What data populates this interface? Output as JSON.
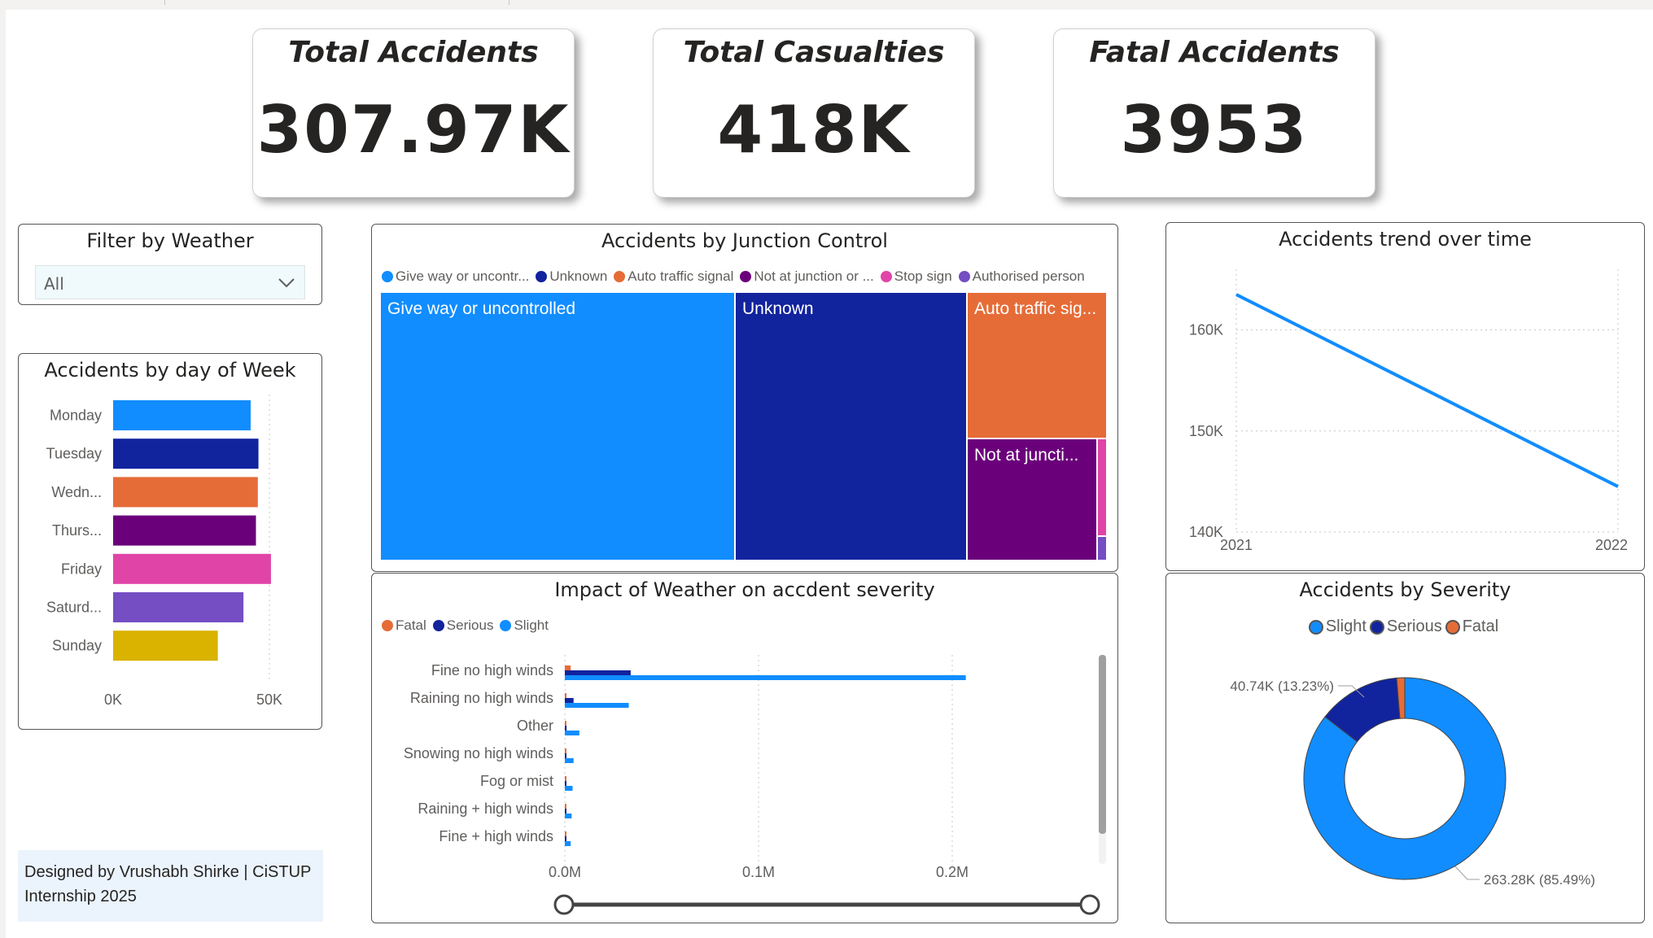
{
  "kpis": [
    {
      "title": "Total Accidents",
      "value": "307.97K"
    },
    {
      "title": "Total Casualties",
      "value": "418K"
    },
    {
      "title": "Fatal Accidents",
      "value": "3953"
    }
  ],
  "filter": {
    "title": "Filter by Weather",
    "selected": "All"
  },
  "day_chart": {
    "title": "Accidents by day of Week",
    "x_ticks": [
      "0K",
      "50K"
    ],
    "chart_data": {
      "type": "bar",
      "orientation": "horizontal",
      "categories": [
        "Monday",
        "Tuesday",
        "Wedn...",
        "Thurs...",
        "Friday",
        "Saturd...",
        "Sunday"
      ],
      "values": [
        44000,
        46500,
        46300,
        45700,
        50500,
        41700,
        33500
      ],
      "colors": [
        "#118dff",
        "#12239e",
        "#e66c37",
        "#6b007b",
        "#e044a7",
        "#744ec2",
        "#d9b300"
      ],
      "xlim": [
        0,
        50000
      ]
    }
  },
  "junction_chart": {
    "title": "Accidents by Junction Control",
    "legend": [
      {
        "label": "Give way or uncontr...",
        "color": "#118dff"
      },
      {
        "label": "Unknown",
        "color": "#12239e"
      },
      {
        "label": "Auto traffic signal",
        "color": "#e66c37"
      },
      {
        "label": "Not at junction or ...",
        "color": "#6b007b"
      },
      {
        "label": "Stop sign",
        "color": "#e044a7"
      },
      {
        "label": "Authorised person",
        "color": "#744ec2"
      }
    ],
    "cells": [
      {
        "label": "Give way or uncontrolled",
        "color": "#118dff"
      },
      {
        "label": "Unknown",
        "color": "#12239e"
      },
      {
        "label": "Auto traffic sig...",
        "color": "#e66c37"
      },
      {
        "label": "Not at juncti...",
        "color": "#6b007b"
      },
      {
        "label": "",
        "color": "#e044a7"
      },
      {
        "label": "",
        "color": "#744ec2"
      }
    ]
  },
  "trend_chart": {
    "title": "Accidents trend over time",
    "chart_data": {
      "type": "line",
      "x": [
        "2021",
        "2022"
      ],
      "values": [
        163500,
        144500
      ],
      "ylim": [
        140000,
        166000
      ],
      "y_ticks": [
        "160K",
        "150K",
        "140K"
      ],
      "color": "#118dff"
    }
  },
  "weather_chart": {
    "title": "Impact of Weather on accdent severity",
    "legend": [
      {
        "label": "Fatal",
        "color": "#e66c37"
      },
      {
        "label": "Serious",
        "color": "#12239e"
      },
      {
        "label": "Slight",
        "color": "#118dff"
      }
    ],
    "x_ticks": [
      "0.0M",
      "0.1M",
      "0.2M"
    ],
    "chart_data": {
      "type": "bar",
      "orientation": "horizontal",
      "categories": [
        "Fine no high winds",
        "Raining no high winds",
        "Other",
        "Snowing no high winds",
        "Fog or mist",
        "Raining + high winds",
        "Fine + high winds"
      ],
      "series": [
        {
          "name": "Fatal",
          "values": [
            3000,
            500,
            150,
            100,
            100,
            100,
            100
          ]
        },
        {
          "name": "Serious",
          "values": [
            34000,
            4500,
            900,
            500,
            300,
            600,
            500
          ]
        },
        {
          "name": "Slight",
          "values": [
            207000,
            33000,
            7500,
            4500,
            4000,
            3500,
            3000
          ]
        }
      ],
      "xlim": [
        0,
        250000
      ]
    }
  },
  "severity_chart": {
    "title": "Accidents by Severity",
    "legend": [
      {
        "label": "Slight",
        "color": "#118dff"
      },
      {
        "label": "Serious",
        "color": "#12239e"
      },
      {
        "label": "Fatal",
        "color": "#e66c37"
      }
    ],
    "label_serious": "40.74K (13.23%)",
    "label_slight": "263.28K (85.49%)",
    "chart_data": {
      "type": "pie",
      "donut": true,
      "categories": [
        "Slight",
        "Serious",
        "Fatal"
      ],
      "values": [
        263280,
        40740,
        3950
      ],
      "colors": [
        "#118dff",
        "#12239e",
        "#e66c37"
      ]
    }
  },
  "credit": "Designed by Vrushabh Shirke | CiSTUP Internship 2025"
}
